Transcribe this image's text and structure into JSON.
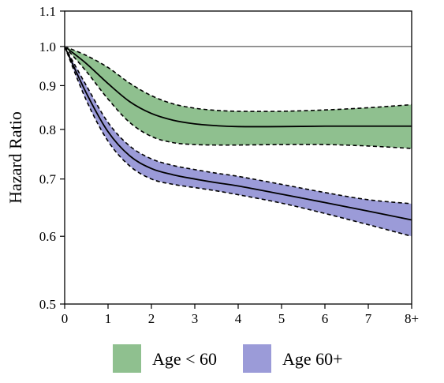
{
  "chart_data": {
    "type": "line",
    "title": "",
    "xlabel": "",
    "ylabel": "Hazard Ratio",
    "xlim": [
      0,
      8
    ],
    "ylim": [
      0.5,
      1.1
    ],
    "yscale": "log",
    "x_ticks": [
      0,
      1,
      2,
      3,
      4,
      5,
      6,
      7,
      8
    ],
    "x_tick_labels": [
      "0",
      "1",
      "2",
      "3",
      "4",
      "5",
      "6",
      "7",
      "8+"
    ],
    "y_ticks": [
      0.5,
      0.6,
      0.7,
      0.8,
      0.9,
      1.0,
      1.1
    ],
    "y_tick_labels": [
      "0.5",
      "0.6",
      "0.7",
      "0.8",
      "0.9",
      "1.0",
      "1.1"
    ],
    "reference_line": 1.0,
    "grid": false,
    "legend_position": "bottom",
    "x": [
      0,
      0.5,
      1,
      1.5,
      2,
      2.5,
      3,
      3.5,
      4,
      5,
      6,
      7,
      8
    ],
    "series": [
      {
        "name": "Age < 60",
        "color": "#8fc08f",
        "estimate": [
          1.0,
          0.955,
          0.905,
          0.862,
          0.835,
          0.82,
          0.812,
          0.808,
          0.806,
          0.806,
          0.807,
          0.807,
          0.807
        ],
        "lower": [
          1.0,
          0.935,
          0.868,
          0.815,
          0.785,
          0.772,
          0.768,
          0.767,
          0.767,
          0.768,
          0.768,
          0.765,
          0.76
        ],
        "upper": [
          1.0,
          0.976,
          0.945,
          0.906,
          0.876,
          0.857,
          0.847,
          0.842,
          0.84,
          0.84,
          0.843,
          0.848,
          0.855
        ]
      },
      {
        "name": "Age 60+",
        "color": "#9b9bd8",
        "estimate": [
          1.0,
          0.882,
          0.795,
          0.745,
          0.72,
          0.708,
          0.7,
          0.693,
          0.687,
          0.672,
          0.657,
          0.642,
          0.627
        ],
        "lower": [
          1.0,
          0.865,
          0.775,
          0.725,
          0.7,
          0.69,
          0.684,
          0.678,
          0.671,
          0.656,
          0.638,
          0.619,
          0.6
        ],
        "upper": [
          1.0,
          0.9,
          0.815,
          0.765,
          0.739,
          0.726,
          0.718,
          0.711,
          0.705,
          0.69,
          0.675,
          0.662,
          0.655
        ]
      }
    ]
  }
}
